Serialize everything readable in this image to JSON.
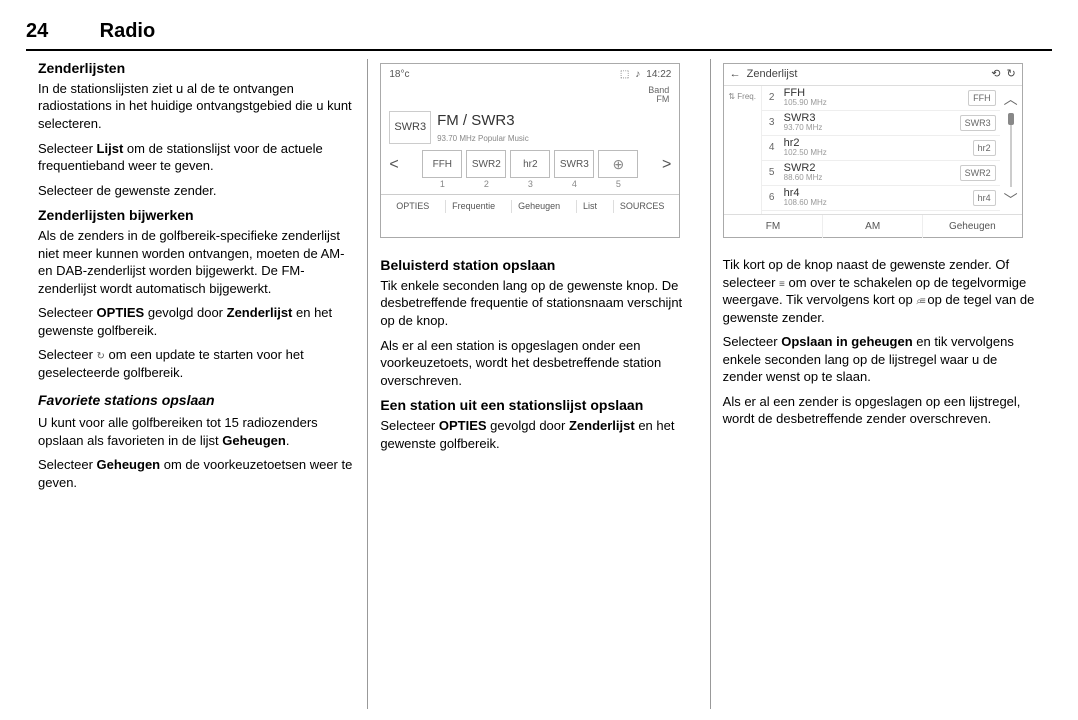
{
  "page": {
    "number": "24",
    "chapter": "Radio"
  },
  "col1": {
    "h1": "Zenderlijsten",
    "p1": "In de stationslijsten ziet u al de te ontvangen radiostations in het huidige ontvangstgebied die u kunt selecteren.",
    "p2a": "Selecteer ",
    "p2b": "Lijst",
    "p2c": " om de stationslijst voor de actuele frequentieband weer te geven.",
    "p3": "Selecteer de gewenste zender.",
    "h2": "Zenderlijsten bijwerken",
    "p4": "Als de zenders in de golfbereik-speci­fieke zenderlijst niet meer kunnen worden ontvangen, moeten de AM- en DAB-zenderlijst worden bijge­werkt. De FM-zenderlijst wordt auto­matisch bijgewerkt.",
    "p5a": "Selecteer ",
    "p5b": "OPTIES",
    "p5c": " gevolgd door ",
    "p5d": "Zenderlijst",
    "p5e": " en het gewenste golfbe­reik.",
    "p6a": "Selecteer ",
    "p6b": " om een update te starten voor het geselecteerde golfbereik.",
    "h3": "Favoriete stations opslaan",
    "p7a": "U kunt voor alle golfbereiken tot 15 radiozenders opslaan als favorieten in de lijst ",
    "p7b": "Geheugen",
    "p7c": ".",
    "p8a": "Selecteer ",
    "p8b": "Geheugen",
    "p8c": " om de voorkeu­zetoetsen weer te geven."
  },
  "col2": {
    "h1": "Beluisterd station opslaan",
    "p1": "Tik enkele seconden lang op de gewenste knop. De desbetreffende frequentie of stationsnaam verschijnt op de knop.",
    "p2": "Als er al een station is opgeslagen onder een voorkeuzetoets, wordt het desbetreffende station overschreven.",
    "h2": "Een station uit een stationslijst opslaan",
    "p3a": "Selecteer ",
    "p3b": "OPTIES",
    "p3c": " gevolgd door ",
    "p3d": "Zenderlijst",
    "p3e": " en het gewenste golfbe­reik."
  },
  "col3": {
    "p1a": "Tik kort op de knop naast de gewen­ste zender. Of selecteer ",
    "p1b": " om over te schakelen op de tegelvormige weergave. Tik vervolgens kort op ",
    "p1c": " op de tegel van de gewenste zender.",
    "p2a": "Selecteer ",
    "p2b": "Opslaan in geheugen",
    "p2c": " en tik vervolgens enkele seconden lang op de lijstregel waar u de zender wenst op te slaan.",
    "p3": "Als er al een zender is opgeslagen op een lijstregel, wordt de desbetref­fende zender overschreven."
  },
  "screen1": {
    "temp": "18°c",
    "time": "14:22",
    "current_box": "SWR3",
    "station_line": "FM / SWR3",
    "sub": "93.70 MHz Popular Music",
    "band_label": "Band",
    "band_value": "FM",
    "presets": [
      "FFH",
      "SWR2",
      "hr2",
      "SWR3"
    ],
    "preset_nums": [
      "1",
      "2",
      "3",
      "4",
      "5"
    ],
    "bottom": [
      "OPTIES",
      "Frequentie",
      "Geheugen",
      "List",
      "SOURCES"
    ]
  },
  "screen2": {
    "title": "Zenderlijst",
    "left_label": "⇅ Freq.",
    "rows": [
      {
        "n": "2",
        "name": "FFH",
        "freq": "105.90 MHz",
        "tag": "FFH"
      },
      {
        "n": "3",
        "name": "SWR3",
        "freq": "93.70 MHz",
        "tag": "SWR3"
      },
      {
        "n": "4",
        "name": "hr2",
        "freq": "102.50 MHz",
        "tag": "hr2"
      },
      {
        "n": "5",
        "name": "SWR2",
        "freq": "88.60 MHz",
        "tag": "SWR2"
      },
      {
        "n": "6",
        "name": "hr4",
        "freq": "108.60 MHz",
        "tag": "hr4"
      }
    ],
    "bottom": [
      "FM",
      "AM",
      "Geheugen"
    ]
  }
}
